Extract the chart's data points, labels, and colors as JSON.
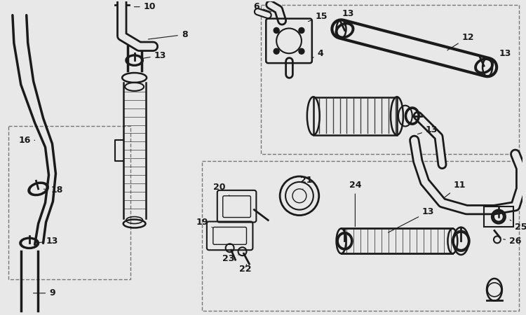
{
  "bg_color": "#e8e8e8",
  "line_color": "#1a1a1a",
  "fig_w": 7.5,
  "fig_h": 4.5,
  "dpi": 100
}
